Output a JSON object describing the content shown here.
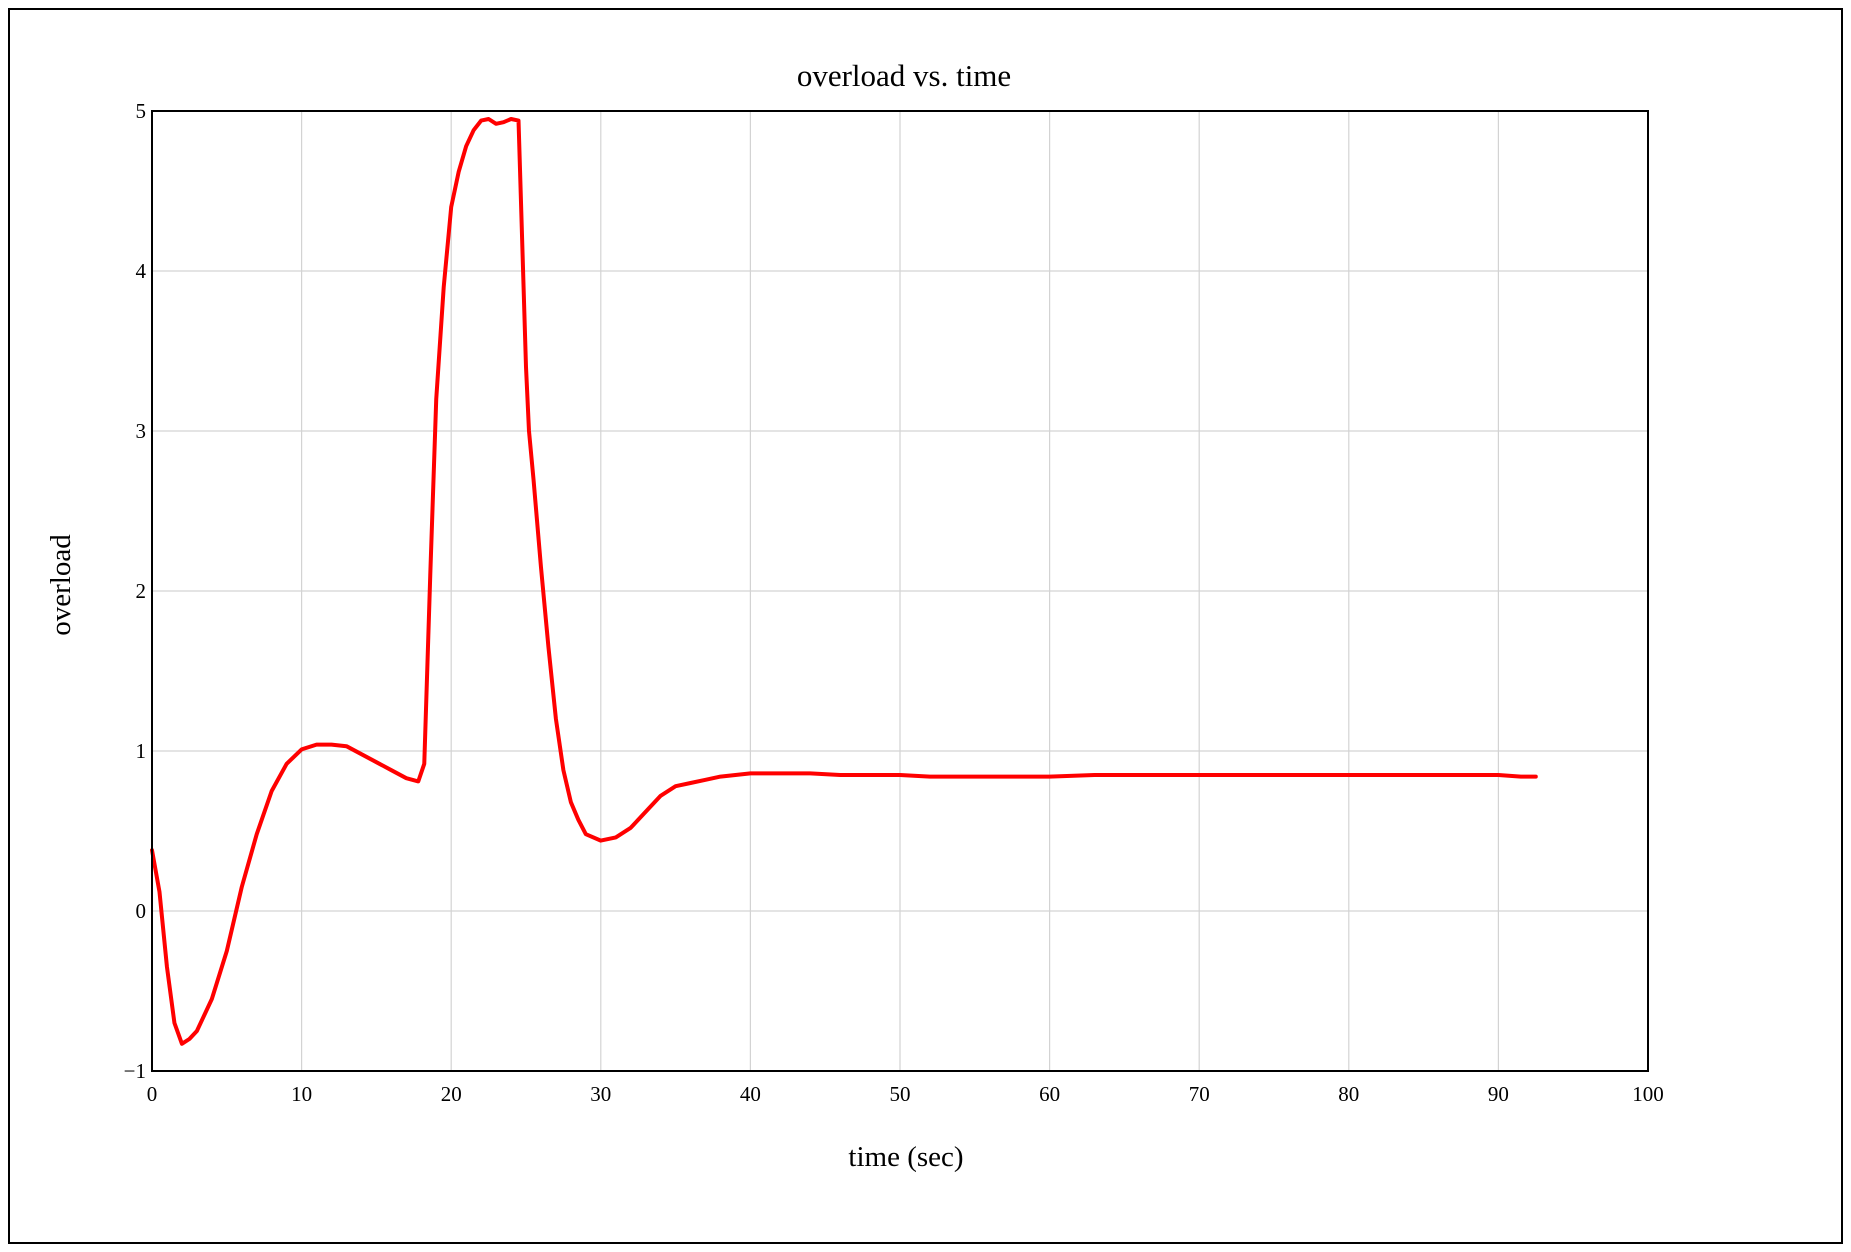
{
  "chart_data": {
    "type": "line",
    "title": "overload vs. time",
    "xlabel": "time (sec)",
    "ylabel": "overload",
    "xlim": [
      0,
      100
    ],
    "ylim": [
      -1,
      5
    ],
    "x_ticks": [
      "0",
      "10",
      "20",
      "30",
      "40",
      "50",
      "60",
      "70",
      "80",
      "90",
      "100"
    ],
    "y_ticks": [
      "−1",
      "0",
      "1",
      "2",
      "3",
      "4",
      "5"
    ],
    "grid": true,
    "legend": "none",
    "series": [
      {
        "color": "#ff0000",
        "x": [
          0.0,
          0.5,
          1.0,
          1.5,
          2.0,
          2.5,
          3.0,
          3.5,
          4.0,
          5.0,
          6.0,
          7.0,
          8.0,
          9.0,
          10.0,
          11.0,
          12.0,
          13.0,
          14.0,
          15.0,
          16.0,
          17.0,
          17.8,
          18.2,
          18.6,
          19.0,
          19.5,
          20.0,
          20.5,
          21.0,
          21.5,
          22.0,
          22.5,
          23.0,
          23.5,
          24.0,
          24.5,
          25.0,
          25.2,
          25.5,
          26.0,
          26.5,
          27.0,
          27.5,
          28.0,
          28.5,
          29.0,
          30.0,
          31.0,
          32.0,
          33.0,
          34.0,
          35.0,
          36.0,
          37.0,
          38.0,
          39.0,
          40.0,
          42.0,
          44.0,
          46.0,
          50.0,
          52.0,
          55.0,
          60.0,
          63.0,
          65.0,
          70.0,
          80.0,
          90.0,
          91.5,
          92.5
        ],
        "y": [
          0.38,
          0.12,
          -0.35,
          -0.7,
          -0.83,
          -0.8,
          -0.75,
          -0.65,
          -0.55,
          -0.25,
          0.15,
          0.48,
          0.75,
          0.92,
          1.01,
          1.04,
          1.04,
          1.03,
          0.98,
          0.93,
          0.88,
          0.83,
          0.81,
          0.92,
          2.1,
          3.2,
          3.9,
          4.4,
          4.62,
          4.78,
          4.88,
          4.94,
          4.95,
          4.92,
          4.93,
          4.95,
          4.94,
          3.4,
          3.0,
          2.7,
          2.15,
          1.65,
          1.2,
          0.88,
          0.68,
          0.57,
          0.48,
          0.44,
          0.46,
          0.52,
          0.62,
          0.72,
          0.78,
          0.8,
          0.82,
          0.84,
          0.85,
          0.86,
          0.86,
          0.86,
          0.85,
          0.85,
          0.84,
          0.84,
          0.84,
          0.85,
          0.85,
          0.85,
          0.85,
          0.85,
          0.84,
          0.84
        ]
      }
    ]
  }
}
